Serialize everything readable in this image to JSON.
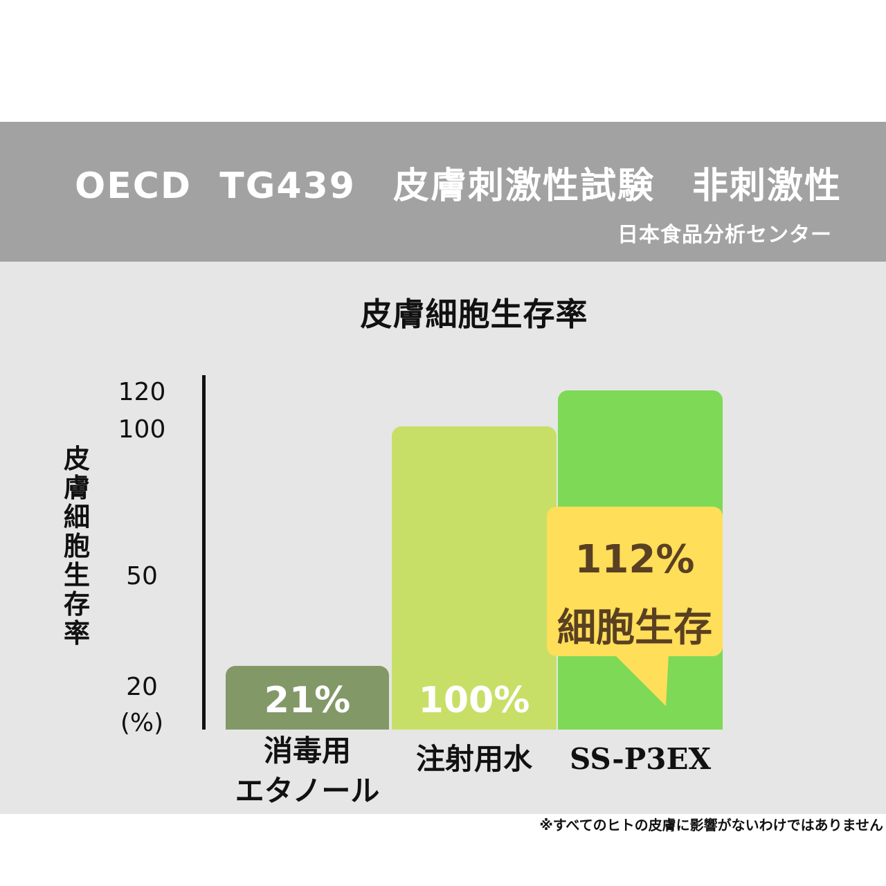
{
  "header": {
    "title": "OECD  TG439　皮膚刺激性試験　非刺激性",
    "source": "日本食品分析センター"
  },
  "chart_data": {
    "type": "bar",
    "title": "皮膚細胞生存率",
    "ylabel": "皮膚細胞生存率",
    "yunit": "(%)",
    "categories": [
      "消毒用\nエタノール",
      "注射用水",
      "SS-P3EX"
    ],
    "values": [
      21,
      100,
      112
    ],
    "data_labels": [
      "21%",
      "100%",
      ""
    ],
    "colors": [
      "#839867",
      "#c7df67",
      "#7ed957"
    ],
    "yticks": [
      "120",
      "100",
      "50",
      "20"
    ],
    "ylim": [
      0,
      120
    ]
  },
  "callout": {
    "line1": "112%",
    "line2": "細胞生存",
    "color": "#ffde59",
    "text_color": "#5a4022"
  },
  "footnote": "※すべてのヒトの皮膚に影響がないわけではありません"
}
